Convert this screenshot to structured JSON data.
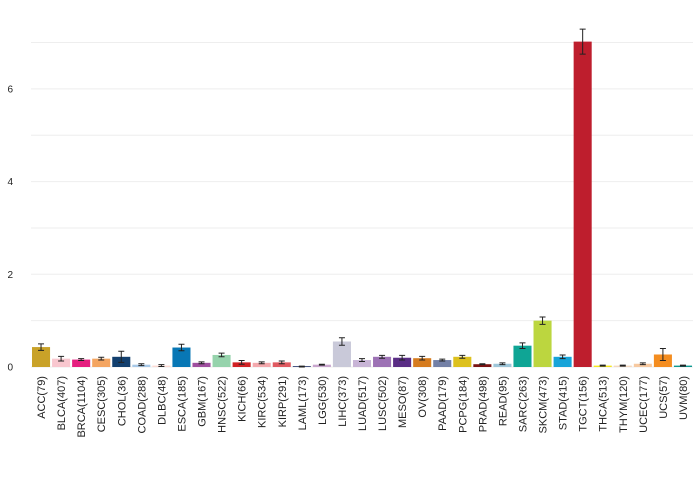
{
  "chart_data": {
    "type": "bar",
    "categories": [
      "ACC(79)",
      "BLCA(407)",
      "BRCA(1104)",
      "CESC(305)",
      "CHOL(36)",
      "COAD(288)",
      "DLBC(48)",
      "ESCA(185)",
      "GBM(167)",
      "HNSC(522)",
      "KICH(66)",
      "KIRC(534)",
      "KIRP(291)",
      "LAML(173)",
      "LGG(530)",
      "LIHC(373)",
      "LUAD(517)",
      "LUSC(502)",
      "MESO(87)",
      "OV(308)",
      "PAAD(179)",
      "PCPG(184)",
      "PRAD(498)",
      "READ(95)",
      "SARC(263)",
      "SKCM(473)",
      "STAD(415)",
      "TGCT(156)",
      "THCA(513)",
      "THYM(120)",
      "UCEC(177)",
      "UCS(57)",
      "UVM(80)"
    ],
    "values": [
      0.43,
      0.18,
      0.16,
      0.18,
      0.22,
      0.05,
      0.03,
      0.42,
      0.09,
      0.26,
      0.1,
      0.09,
      0.1,
      0.01,
      0.05,
      0.55,
      0.15,
      0.22,
      0.2,
      0.19,
      0.15,
      0.22,
      0.06,
      0.07,
      0.46,
      1.0,
      0.22,
      7.02,
      0.03,
      0.03,
      0.07,
      0.27,
      0.03
    ],
    "errors": [
      0.07,
      0.05,
      0.02,
      0.03,
      0.12,
      0.02,
      0.02,
      0.07,
      0.02,
      0.04,
      0.04,
      0.02,
      0.03,
      0.01,
      0.01,
      0.08,
      0.03,
      0.03,
      0.05,
      0.04,
      0.02,
      0.03,
      0.01,
      0.02,
      0.06,
      0.08,
      0.04,
      0.27,
      0.01,
      0.01,
      0.02,
      0.13,
      0.01
    ],
    "colors": [
      "#c9a228",
      "#f9c7cf",
      "#e51e7f",
      "#f4a561",
      "#123f6e",
      "#a8c9e8",
      "#fddad3",
      "#0877b5",
      "#9f4f9f",
      "#96d3ac",
      "#d12124",
      "#f4a9ad",
      "#e05a61",
      "#1f2f66",
      "#c9a6ce",
      "#c9c9d9",
      "#c8b4d6",
      "#9d72b5",
      "#5a2d85",
      "#d67c1f",
      "#7380a6",
      "#ddc11e",
      "#7a1313",
      "#9ec6d9",
      "#0fa595",
      "#bcd63f",
      "#17a4d9",
      "#be1e2d",
      "#f6e81e",
      "#f4d8c0",
      "#f7c9a0",
      "#f48d20",
      "#0e9a91"
    ],
    "yticks": [
      0,
      2,
      4,
      6
    ],
    "ylim": [
      0,
      7.4
    ],
    "grid": true,
    "xlabel": "",
    "ylabel": "",
    "title": ""
  }
}
